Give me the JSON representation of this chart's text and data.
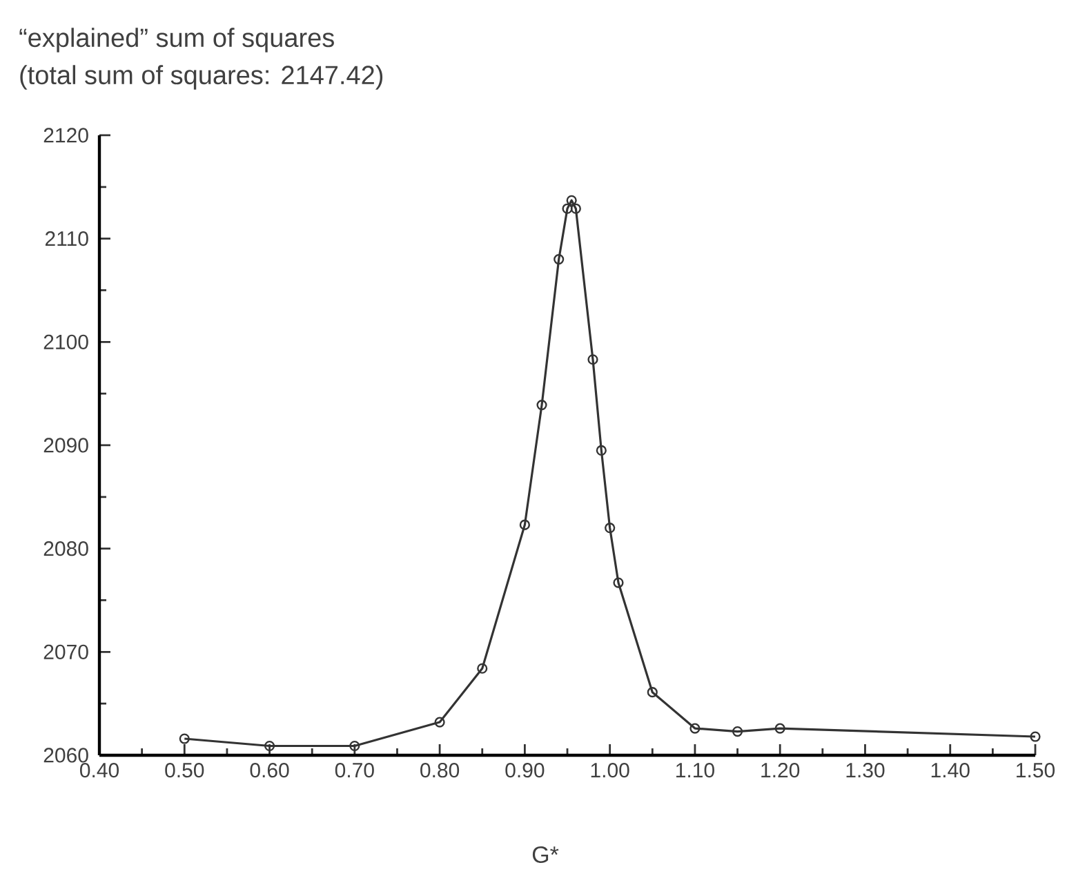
{
  "chart_data": {
    "type": "line",
    "title": "“explained” sum of squares",
    "subtitle": "(total sum of squares: 2147.42)",
    "xlabel": "G*",
    "x": [
      0.5,
      0.6,
      0.7,
      0.8,
      0.85,
      0.9,
      0.92,
      0.94,
      0.95,
      0.955,
      0.96,
      0.98,
      0.99,
      1.0,
      1.01,
      1.05,
      1.1,
      1.15,
      1.2,
      1.5
    ],
    "series": [
      {
        "color": "#333333",
        "values": [
          2061.6,
          2060.9,
          2060.9,
          2063.2,
          2068.4,
          2082.3,
          2093.9,
          2108.0,
          2112.9,
          2113.7,
          2112.9,
          2098.3,
          2089.5,
          2082.0,
          2076.7,
          2066.1,
          2062.6,
          2062.3,
          2062.6,
          2061.8
        ]
      }
    ],
    "marker": "circle",
    "line_style": "solid",
    "grid": false,
    "xlim": [
      0.4,
      1.5
    ],
    "ylim": [
      2060,
      2120
    ],
    "xticks": [
      {
        "value": 0.4,
        "label": "0.40"
      },
      {
        "value": 0.5,
        "label": "0.50"
      },
      {
        "value": 0.6,
        "label": "0.60"
      },
      {
        "value": 0.7,
        "label": "0.70"
      },
      {
        "value": 0.8,
        "label": "0.80"
      },
      {
        "value": 0.9,
        "label": "0.90"
      },
      {
        "value": 1.0,
        "label": "1.00"
      },
      {
        "value": 1.1,
        "label": "1.10"
      },
      {
        "value": 1.2,
        "label": "1.20"
      },
      {
        "value": 1.3,
        "label": "1.30"
      },
      {
        "value": 1.4,
        "label": "1.40"
      },
      {
        "value": 1.5,
        "label": "1.50"
      }
    ],
    "yticks": [
      2060,
      2070,
      2080,
      2090,
      2100,
      2110,
      2120
    ]
  }
}
